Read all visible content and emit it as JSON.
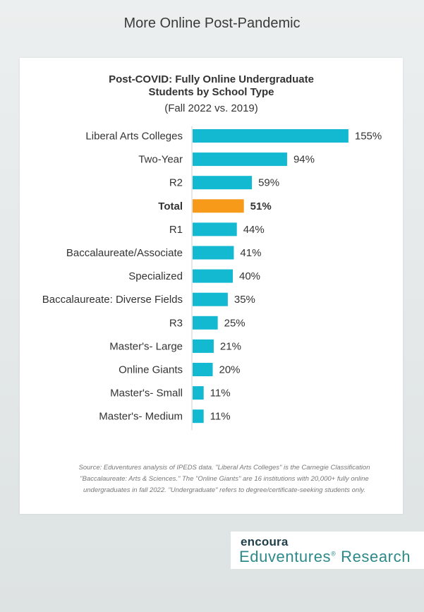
{
  "page": {
    "heading": "More Online Post-Pandemic"
  },
  "chart": {
    "title_line1": "Post-COVID: Fully Online Undergraduate",
    "title_line2": "Students by School Type",
    "subtitle": "(Fall 2022 vs. 2019)"
  },
  "chart_data": {
    "type": "bar",
    "orientation": "horizontal",
    "title": "Post-COVID: Fully Online Undergraduate Students by School Type",
    "subtitle": "(Fall 2022 vs. 2019)",
    "categories": [
      "Liberal Arts Colleges",
      "Two-Year",
      "R2",
      "Total",
      "R1",
      "Baccalaureate/Associate",
      "Specialized",
      "Baccalaureate: Diverse Fields",
      "R3",
      "Master's- Large",
      "Online Giants",
      "Master's- Small",
      "Master's- Medium"
    ],
    "values": [
      155,
      94,
      59,
      51,
      44,
      41,
      40,
      35,
      25,
      21,
      20,
      11,
      11
    ],
    "value_labels": [
      "155%",
      "94%",
      "59%",
      "51%",
      "44%",
      "41%",
      "40%",
      "35%",
      "25%",
      "21%",
      "20%",
      "11%",
      "11%"
    ],
    "unit": "%",
    "highlight_category": "Total",
    "colors": {
      "bar": "#12b9d1",
      "highlight": "#f79a1a",
      "axis": "#cfcfcf",
      "label": "#333333"
    },
    "grid": false,
    "legend": "none"
  },
  "source": {
    "line1": "Source: Eduventures analysis of IPEDS data. \"Liberal Arts Colleges\" is the Carnegie Classification",
    "line2": "\"Baccalaureate: Arts & Sciences.\" The \"Online Giants\" are 16 institutions with 20,000+ fully online",
    "line3": "undergraduates in fall 2022. \"Undergraduate\" refers to degree/certificate-seeking students only."
  },
  "logo": {
    "encoura": "encoura",
    "eduventures": "Eduventures",
    "research": "Research"
  }
}
